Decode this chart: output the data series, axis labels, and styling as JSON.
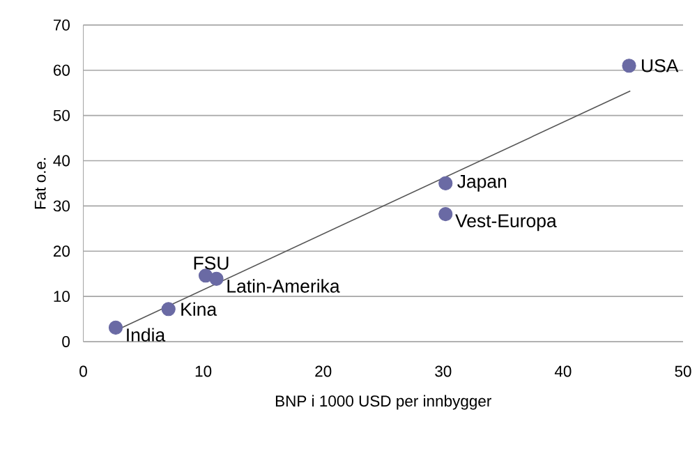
{
  "chart_data": {
    "type": "scatter",
    "xlabel": "BNP i 1000 USD per innbygger",
    "ylabel": "Fat o.e.",
    "xlim": [
      0,
      50
    ],
    "ylim": [
      0,
      70
    ],
    "xticks": [
      0,
      10,
      20,
      30,
      40,
      50
    ],
    "yticks": [
      0,
      10,
      20,
      30,
      40,
      50,
      60,
      70
    ],
    "grid": "y",
    "marker": "circle",
    "series": [
      {
        "color": "#6a6aa4",
        "x": [
          45.5,
          30.2,
          30.2,
          10.2,
          11.1,
          7.1,
          2.7
        ],
        "values": [
          61.0,
          35.0,
          28.2,
          14.6,
          13.9,
          7.2,
          3.1
        ]
      },
      {
        "type": "line",
        "color": "#555555",
        "marker": "none",
        "x": [
          3.05,
          45.6
        ],
        "values": [
          2.9,
          55.4
        ]
      }
    ],
    "annotations": [
      {
        "text": "USA",
        "x": 45.5,
        "y": 61.0
      },
      {
        "text": "Japan",
        "x": 30.2,
        "y": 35.0
      },
      {
        "text": "Vest-Europa",
        "x": 30.2,
        "y": 28.2
      },
      {
        "text": "FSU",
        "x": 10.2,
        "y": 14.6
      },
      {
        "text": "Latin-Amerika",
        "x": 11.1,
        "y": 13.9
      },
      {
        "text": "Kina",
        "x": 7.1,
        "y": 7.2
      },
      {
        "text": "India",
        "x": 2.7,
        "y": 3.1
      }
    ]
  }
}
